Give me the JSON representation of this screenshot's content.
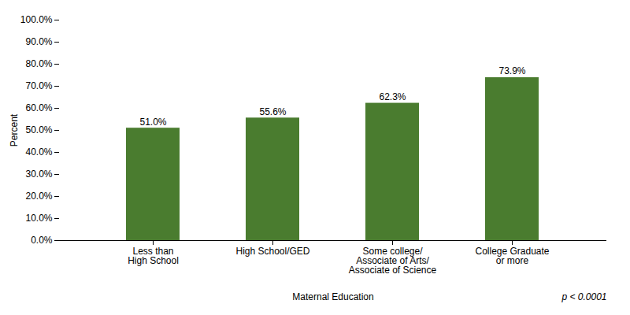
{
  "chart_data": {
    "type": "bar",
    "categories": [
      "Less than\nHigh School",
      "High School/GED",
      "Some college/\nAssociate of Arts/\nAssociate of Science",
      "College Graduate\nor more"
    ],
    "values": [
      51.0,
      55.6,
      62.3,
      73.9
    ],
    "value_labels": [
      "51.0%",
      "55.6%",
      "62.3%",
      "73.9%"
    ],
    "data_labels": true,
    "color": "#4a7c2f",
    "xlabel": "Maternal Education",
    "ylabel": "Percent",
    "annotation": "p < 0.0001",
    "ylim": [
      0,
      100
    ],
    "yticks": [
      {
        "value": 0,
        "label": "0.0%"
      },
      {
        "value": 10,
        "label": "10.0%"
      },
      {
        "value": 20,
        "label": "20.0%"
      },
      {
        "value": 30,
        "label": "30.0%"
      },
      {
        "value": 40,
        "label": "40.0%"
      },
      {
        "value": 50,
        "label": "50.0%"
      },
      {
        "value": 60,
        "label": "60.0%"
      },
      {
        "value": 70,
        "label": "70.0%"
      },
      {
        "value": 80,
        "label": "80.0%"
      },
      {
        "value": 90,
        "label": "90.0%"
      },
      {
        "value": 100,
        "label": "100.0%"
      }
    ],
    "grid": false
  }
}
